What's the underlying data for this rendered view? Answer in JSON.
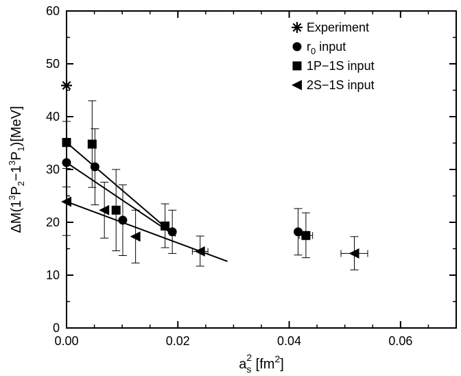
{
  "chart_data": {
    "type": "scatter",
    "xlim": [
      0,
      0.07
    ],
    "ylim": [
      0,
      60
    ],
    "x_ticks": [
      0.0,
      0.02,
      0.04,
      0.06
    ],
    "x_tick_labels": [
      "0.00",
      "0.02",
      "0.04",
      "0.06"
    ],
    "x_minor_step": 0.005,
    "y_ticks": [
      0,
      10,
      20,
      30,
      40,
      50,
      60
    ],
    "y_tick_labels": [
      "0",
      "10",
      "20",
      "30",
      "40",
      "50",
      "60"
    ],
    "y_minor_step": 5,
    "grid": false,
    "legend_position": "top-right",
    "xlabel": {
      "base": "a",
      "sub": "s",
      "sup": "2",
      "after_a": " [fm",
      "after_sup": "]"
    },
    "ylabel": {
      "parts": [
        {
          "t": "ΔM(1",
          "k": "n"
        },
        {
          "t": "3",
          "k": "sup"
        },
        {
          "t": "P",
          "k": "n"
        },
        {
          "t": "2",
          "k": "sub"
        },
        {
          "t": "−1",
          "k": "n"
        },
        {
          "t": "3",
          "k": "sup"
        },
        {
          "t": "P",
          "k": "n"
        },
        {
          "t": "1",
          "k": "sub"
        },
        {
          "t": ")[MeV]",
          "k": "n"
        }
      ]
    },
    "series": [
      {
        "name": "Experiment",
        "marker": "asterisk",
        "points": [
          {
            "x": 0.0,
            "y": 45.9
          }
        ]
      },
      {
        "name_base": "r",
        "name_sub": "0",
        "name_rest": " input",
        "marker": "circle",
        "points": [
          {
            "x": 0.0,
            "y": 31.3,
            "ylo": 26.7,
            "yhi": 35.9,
            "xerr": 0
          },
          {
            "x": 0.0051,
            "y": 30.5,
            "ylo": 23.3,
            "yhi": 37.7,
            "xerr": 0
          },
          {
            "x": 0.0101,
            "y": 20.4,
            "ylo": 13.7,
            "yhi": 27.1,
            "xerr": 0
          },
          {
            "x": 0.019,
            "y": 18.2,
            "ylo": 14.1,
            "yhi": 22.3,
            "xerr": 0
          },
          {
            "x": 0.0416,
            "y": 18.2,
            "ylo": 13.8,
            "yhi": 22.6,
            "xerr": 0
          }
        ]
      },
      {
        "name": "1P−1S input",
        "marker": "square",
        "points": [
          {
            "x": 0.0,
            "y": 35.1,
            "ylo": 31.1,
            "yhi": 39.1,
            "xerr": 0
          },
          {
            "x": 0.0046,
            "y": 34.8,
            "ylo": 26.6,
            "yhi": 43.0,
            "xerr": 0
          },
          {
            "x": 0.0089,
            "y": 22.3,
            "ylo": 14.6,
            "yhi": 30.0,
            "xerr": 0
          },
          {
            "x": 0.0177,
            "y": 19.3,
            "ylo": 15.2,
            "yhi": 23.5,
            "xerr": 0
          },
          {
            "x": 0.043,
            "y": 17.5,
            "ylo": 13.3,
            "yhi": 21.8,
            "xerr": 0.0012
          }
        ]
      },
      {
        "name": "2S−1S input",
        "marker": "triangle-left",
        "points": [
          {
            "x": 0.0,
            "y": 23.9,
            "ylo": 17.5,
            "yhi": 30.2,
            "xerr": 0
          },
          {
            "x": 0.0068,
            "y": 22.3,
            "ylo": 17.0,
            "yhi": 27.6,
            "xerr": 0
          },
          {
            "x": 0.0124,
            "y": 17.3,
            "ylo": 12.3,
            "yhi": 22.3,
            "xerr": 0
          },
          {
            "x": 0.024,
            "y": 14.5,
            "ylo": 11.7,
            "yhi": 17.4,
            "xerr": 0.0014
          },
          {
            "x": 0.0517,
            "y": 14.1,
            "ylo": 11.0,
            "yhi": 17.3,
            "xerr": 0.0024
          }
        ]
      }
    ],
    "fit_lines": [
      {
        "x0": 0.0,
        "y0": 35.1,
        "x1": 0.0186,
        "y1": 18.3
      },
      {
        "x0": 0.0,
        "y0": 31.3,
        "x1": 0.0196,
        "y1": 17.4
      },
      {
        "x0": 0.0,
        "y0": 23.9,
        "x1": 0.0289,
        "y1": 12.6
      }
    ]
  }
}
